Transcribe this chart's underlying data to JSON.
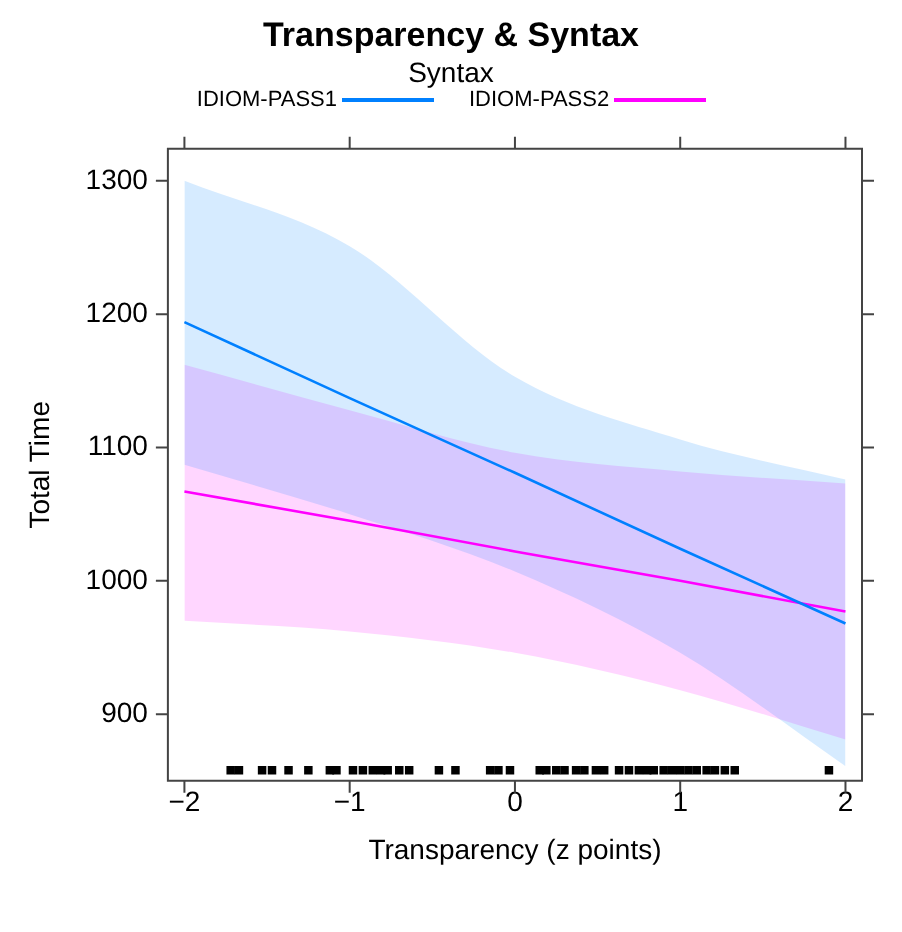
{
  "chart_data": {
    "type": "line",
    "title": "Transparency & Syntax",
    "legend_title": "Syntax",
    "xlabel": "Transparency (z points)",
    "ylabel": "Total Time",
    "xlim": [
      -2.1,
      2.1
    ],
    "ylim": [
      850,
      1324
    ],
    "xticks": [
      {
        "value": -2,
        "label": "−2"
      },
      {
        "value": -1,
        "label": "−1"
      },
      0,
      1,
      2
    ],
    "yticks": [
      900,
      1000,
      1100,
      1200,
      1300
    ],
    "grid": false,
    "legend": "top",
    "marker": "none",
    "line_style": "solid",
    "series": [
      {
        "name": "IDIOM-PASS1",
        "color": "#0080ff",
        "x": [
          -2,
          -1,
          0,
          1,
          2
        ],
        "values": [
          1194,
          1137,
          1081,
          1024,
          968
        ],
        "lower": [
          1087,
          1050,
          1007,
          946,
          861
        ],
        "upper": [
          1300,
          1251,
          1153,
          1106,
          1076
        ]
      },
      {
        "name": "IDIOM-PASS2",
        "color": "#ff00ff",
        "x": [
          -2,
          -1,
          0,
          1,
          2
        ],
        "values": [
          1067,
          1045,
          1022,
          1000,
          977
        ],
        "lower": [
          970,
          962,
          946,
          918,
          881
        ],
        "upper": [
          1162,
          1128,
          1096,
          1082,
          1073
        ]
      },
      {
        "type": "scatter",
        "marker": "square",
        "color": "#000000",
        "x": [
          -1.72,
          -1.67,
          -1.53,
          -1.47,
          -1.37,
          -1.25,
          -1.12,
          -1.08,
          -0.98,
          -0.92,
          -0.86,
          -0.81,
          -0.77,
          -0.7,
          -0.64,
          -0.46,
          -0.36,
          -0.15,
          -0.1,
          -0.03,
          0.15,
          0.19,
          0.25,
          0.3,
          0.37,
          0.42,
          0.49,
          0.54,
          0.63,
          0.69,
          0.75,
          0.8,
          0.84,
          0.9,
          0.95,
          1.0,
          1.05,
          1.1,
          1.16,
          1.21,
          1.27,
          1.33,
          1.9
        ],
        "values": [
          858,
          858,
          858,
          858,
          858,
          858,
          858,
          858,
          858,
          858,
          858,
          858,
          858,
          858,
          858,
          858,
          858,
          858,
          858,
          858,
          858,
          858,
          858,
          858,
          858,
          858,
          858,
          858,
          858,
          858,
          858,
          858,
          858,
          858,
          858,
          858,
          858,
          858,
          858,
          858,
          858,
          858,
          858
        ]
      }
    ]
  }
}
